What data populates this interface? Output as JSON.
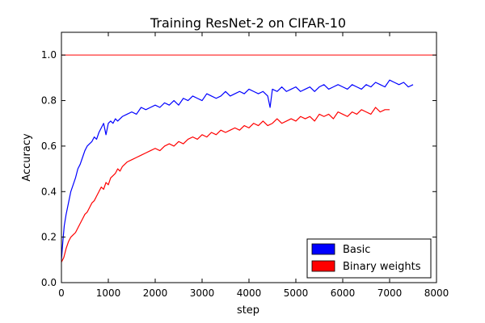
{
  "chart_data": {
    "type": "line",
    "title": "Training ResNet-2 on CIFAR-10",
    "xlabel": "step",
    "ylabel": "Accuracy",
    "xlim": [
      0,
      8000
    ],
    "ylim": [
      0.0,
      1.1
    ],
    "x_ticks": [
      0,
      1000,
      2000,
      3000,
      4000,
      5000,
      6000,
      7000,
      8000
    ],
    "y_ticks": [
      0.0,
      0.2,
      0.4,
      0.6,
      0.8,
      1.0
    ],
    "y_tick_labels": [
      "0.0",
      "0.2",
      "0.4",
      "0.6",
      "0.8",
      "1.0"
    ],
    "grid": false,
    "legend_position": "lower-right",
    "reference_line": {
      "y": 1.0,
      "color": "#ff0000"
    },
    "series": [
      {
        "name": "Basic",
        "color": "#0000ff",
        "points": [
          [
            0,
            0.1
          ],
          [
            30,
            0.18
          ],
          [
            60,
            0.25
          ],
          [
            100,
            0.3
          ],
          [
            150,
            0.35
          ],
          [
            200,
            0.4
          ],
          [
            250,
            0.43
          ],
          [
            300,
            0.46
          ],
          [
            350,
            0.5
          ],
          [
            400,
            0.52
          ],
          [
            450,
            0.55
          ],
          [
            500,
            0.58
          ],
          [
            550,
            0.6
          ],
          [
            600,
            0.61
          ],
          [
            650,
            0.62
          ],
          [
            700,
            0.64
          ],
          [
            750,
            0.63
          ],
          [
            800,
            0.66
          ],
          [
            850,
            0.68
          ],
          [
            900,
            0.7
          ],
          [
            950,
            0.65
          ],
          [
            1000,
            0.7
          ],
          [
            1050,
            0.71
          ],
          [
            1100,
            0.7
          ],
          [
            1150,
            0.72
          ],
          [
            1200,
            0.71
          ],
          [
            1300,
            0.73
          ],
          [
            1400,
            0.74
          ],
          [
            1500,
            0.75
          ],
          [
            1600,
            0.74
          ],
          [
            1700,
            0.77
          ],
          [
            1800,
            0.76
          ],
          [
            1900,
            0.77
          ],
          [
            2000,
            0.78
          ],
          [
            2100,
            0.77
          ],
          [
            2200,
            0.79
          ],
          [
            2300,
            0.78
          ],
          [
            2400,
            0.8
          ],
          [
            2500,
            0.78
          ],
          [
            2600,
            0.81
          ],
          [
            2700,
            0.8
          ],
          [
            2800,
            0.82
          ],
          [
            2900,
            0.81
          ],
          [
            3000,
            0.8
          ],
          [
            3100,
            0.83
          ],
          [
            3200,
            0.82
          ],
          [
            3300,
            0.81
          ],
          [
            3400,
            0.82
          ],
          [
            3500,
            0.84
          ],
          [
            3600,
            0.82
          ],
          [
            3700,
            0.83
          ],
          [
            3800,
            0.84
          ],
          [
            3900,
            0.83
          ],
          [
            4000,
            0.85
          ],
          [
            4100,
            0.84
          ],
          [
            4200,
            0.83
          ],
          [
            4300,
            0.84
          ],
          [
            4400,
            0.82
          ],
          [
            4450,
            0.77
          ],
          [
            4500,
            0.85
          ],
          [
            4600,
            0.84
          ],
          [
            4700,
            0.86
          ],
          [
            4800,
            0.84
          ],
          [
            4900,
            0.85
          ],
          [
            5000,
            0.86
          ],
          [
            5100,
            0.84
          ],
          [
            5200,
            0.85
          ],
          [
            5300,
            0.86
          ],
          [
            5400,
            0.84
          ],
          [
            5500,
            0.86
          ],
          [
            5600,
            0.87
          ],
          [
            5700,
            0.85
          ],
          [
            5800,
            0.86
          ],
          [
            5900,
            0.87
          ],
          [
            6000,
            0.86
          ],
          [
            6100,
            0.85
          ],
          [
            6200,
            0.87
          ],
          [
            6300,
            0.86
          ],
          [
            6400,
            0.85
          ],
          [
            6500,
            0.87
          ],
          [
            6600,
            0.86
          ],
          [
            6700,
            0.88
          ],
          [
            6800,
            0.87
          ],
          [
            6900,
            0.86
          ],
          [
            7000,
            0.89
          ],
          [
            7100,
            0.88
          ],
          [
            7200,
            0.87
          ],
          [
            7300,
            0.88
          ],
          [
            7400,
            0.86
          ],
          [
            7500,
            0.87
          ]
        ]
      },
      {
        "name": "Binary weights",
        "color": "#ff0000",
        "points": [
          [
            0,
            0.09
          ],
          [
            50,
            0.11
          ],
          [
            100,
            0.15
          ],
          [
            150,
            0.18
          ],
          [
            200,
            0.2
          ],
          [
            250,
            0.21
          ],
          [
            300,
            0.22
          ],
          [
            350,
            0.24
          ],
          [
            400,
            0.26
          ],
          [
            450,
            0.28
          ],
          [
            500,
            0.3
          ],
          [
            550,
            0.31
          ],
          [
            600,
            0.33
          ],
          [
            650,
            0.35
          ],
          [
            700,
            0.36
          ],
          [
            750,
            0.38
          ],
          [
            800,
            0.4
          ],
          [
            850,
            0.42
          ],
          [
            900,
            0.41
          ],
          [
            950,
            0.44
          ],
          [
            1000,
            0.43
          ],
          [
            1050,
            0.46
          ],
          [
            1100,
            0.47
          ],
          [
            1150,
            0.48
          ],
          [
            1200,
            0.5
          ],
          [
            1250,
            0.49
          ],
          [
            1300,
            0.51
          ],
          [
            1400,
            0.53
          ],
          [
            1500,
            0.54
          ],
          [
            1600,
            0.55
          ],
          [
            1700,
            0.56
          ],
          [
            1800,
            0.57
          ],
          [
            1900,
            0.58
          ],
          [
            2000,
            0.59
          ],
          [
            2100,
            0.58
          ],
          [
            2200,
            0.6
          ],
          [
            2300,
            0.61
          ],
          [
            2400,
            0.6
          ],
          [
            2500,
            0.62
          ],
          [
            2600,
            0.61
          ],
          [
            2700,
            0.63
          ],
          [
            2800,
            0.64
          ],
          [
            2900,
            0.63
          ],
          [
            3000,
            0.65
          ],
          [
            3100,
            0.64
          ],
          [
            3200,
            0.66
          ],
          [
            3300,
            0.65
          ],
          [
            3400,
            0.67
          ],
          [
            3500,
            0.66
          ],
          [
            3600,
            0.67
          ],
          [
            3700,
            0.68
          ],
          [
            3800,
            0.67
          ],
          [
            3900,
            0.69
          ],
          [
            4000,
            0.68
          ],
          [
            4100,
            0.7
          ],
          [
            4200,
            0.69
          ],
          [
            4300,
            0.71
          ],
          [
            4400,
            0.69
          ],
          [
            4500,
            0.7
          ],
          [
            4600,
            0.72
          ],
          [
            4700,
            0.7
          ],
          [
            4800,
            0.71
          ],
          [
            4900,
            0.72
          ],
          [
            5000,
            0.71
          ],
          [
            5100,
            0.73
          ],
          [
            5200,
            0.72
          ],
          [
            5300,
            0.73
          ],
          [
            5400,
            0.71
          ],
          [
            5500,
            0.74
          ],
          [
            5600,
            0.73
          ],
          [
            5700,
            0.74
          ],
          [
            5800,
            0.72
          ],
          [
            5900,
            0.75
          ],
          [
            6000,
            0.74
          ],
          [
            6100,
            0.73
          ],
          [
            6200,
            0.75
          ],
          [
            6300,
            0.74
          ],
          [
            6400,
            0.76
          ],
          [
            6500,
            0.75
          ],
          [
            6600,
            0.74
          ],
          [
            6700,
            0.77
          ],
          [
            6800,
            0.75
          ],
          [
            6900,
            0.76
          ],
          [
            7000,
            0.76
          ]
        ]
      }
    ]
  }
}
